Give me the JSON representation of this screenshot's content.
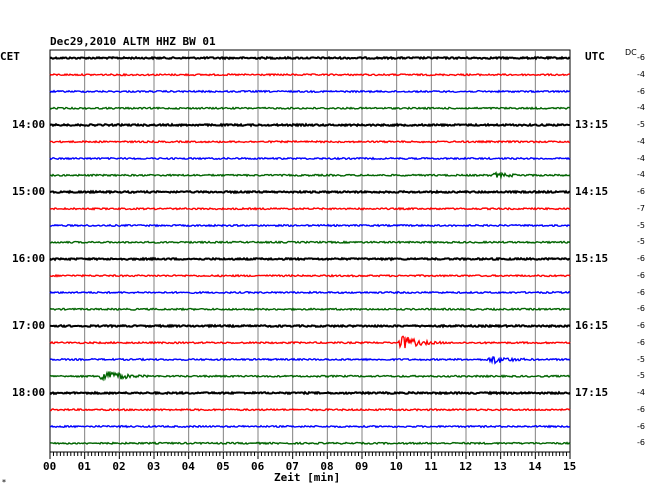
{
  "header": {
    "title": "Dec29,2010   ALTM HHZ BW 01",
    "left_tz": "CET",
    "right_tz": "UTC",
    "dc_label": "DC"
  },
  "axis": {
    "xlabel": "Zeit [min]",
    "ticks": [
      "00",
      "01",
      "02",
      "03",
      "04",
      "05",
      "06",
      "07",
      "08",
      "09",
      "10",
      "11",
      "12",
      "13",
      "14",
      "15"
    ]
  },
  "left_hour_labels": [
    "14:00",
    "15:00",
    "16:00",
    "17:00",
    "18:00"
  ],
  "right_hour_labels": [
    "13:15",
    "14:15",
    "15:15",
    "16:15",
    "17:15"
  ],
  "dc_values": [
    "-6",
    "-4",
    "-6",
    "-4",
    "-5",
    "-4",
    "-4",
    "-4",
    "-6",
    "-7",
    "-5",
    "-5",
    "-6",
    "-6",
    "-6",
    "-6",
    "-6",
    "-6",
    "-5",
    "-5",
    "-4",
    "-6",
    "-6",
    "-6"
  ],
  "trace_colors": [
    "#000000",
    "#ff0000",
    "#0000ff",
    "#006400"
  ],
  "events": [
    {
      "trace": 17,
      "minute": 10.2,
      "amp": 7
    },
    {
      "trace": 18,
      "minute": 12.8,
      "amp": 4
    },
    {
      "trace": 19,
      "minute": 1.6,
      "amp": 8
    },
    {
      "trace": 7,
      "minute": 12.9,
      "amp": 2
    }
  ],
  "footnote": "*"
}
